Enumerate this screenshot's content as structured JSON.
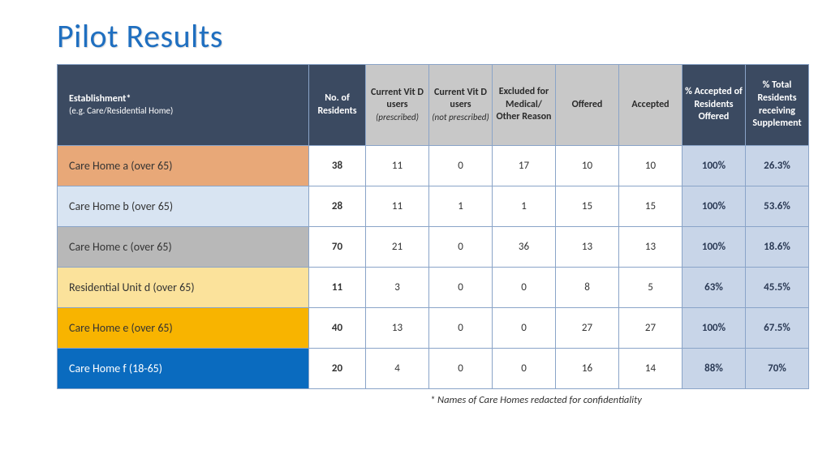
{
  "title": "Pilot Results",
  "footnote": "* Names of Care Homes redacted for confidentiality",
  "columns": [
    {
      "main": "Establishment*",
      "sub": "(e.g. Care/Residential Home)",
      "style": "dark",
      "align": "left"
    },
    {
      "main": "No. of Residents",
      "sub": "",
      "style": "dark"
    },
    {
      "main": "Current Vit D users",
      "sub": "(prescribed)",
      "style": "grey",
      "italicSub": true
    },
    {
      "main": "Current Vit D users",
      "sub": "(not prescribed)",
      "style": "grey",
      "italicSub": true
    },
    {
      "main": "Excluded for Medical/ Other Reason",
      "sub": "",
      "style": "grey"
    },
    {
      "main": "Offered",
      "sub": "",
      "style": "grey"
    },
    {
      "main": "Accepted",
      "sub": "",
      "style": "grey"
    },
    {
      "main": "% Accepted of Residents Offered",
      "sub": "",
      "style": "dark"
    },
    {
      "main": "% Total Residents receiving Supplement",
      "sub": "",
      "style": "dark"
    }
  ],
  "rows": [
    {
      "name": "Care Home a (over 65)",
      "nameBg": "#e8a878",
      "nameColor": "#333333",
      "residents": "38",
      "prescribed": "11",
      "notprescribed": "0",
      "excluded": "17",
      "offered": "10",
      "accepted": "10",
      "pctAccepted": "100%",
      "pctTotal": "26.3%"
    },
    {
      "name": "Care Home b (over 65)",
      "nameBg": "#d8e4f2",
      "nameColor": "#333333",
      "residents": "28",
      "prescribed": "11",
      "notprescribed": "1",
      "excluded": "1",
      "offered": "15",
      "accepted": "15",
      "pctAccepted": "100%",
      "pctTotal": "53.6%"
    },
    {
      "name": "Care Home c (over 65)",
      "nameBg": "#b8b8b8",
      "nameColor": "#333333",
      "residents": "70",
      "prescribed": "21",
      "notprescribed": "0",
      "excluded": "36",
      "offered": "13",
      "accepted": "13",
      "pctAccepted": "100%",
      "pctTotal": "18.6%"
    },
    {
      "name": "Residential Unit d (over 65)",
      "nameBg": "#fbe29b",
      "nameColor": "#333333",
      "residents": "11",
      "prescribed": "3",
      "notprescribed": "0",
      "excluded": "0",
      "offered": "8",
      "accepted": "5",
      "pctAccepted": "63%",
      "pctTotal": "45.5%"
    },
    {
      "name": "Care Home e (over 65)",
      "nameBg": "#f8b400",
      "nameColor": "#333333",
      "residents": "40",
      "prescribed": "13",
      "notprescribed": "0",
      "excluded": "0",
      "offered": "27",
      "accepted": "27",
      "pctAccepted": "100%",
      "pctTotal": "67.5%"
    },
    {
      "name": "Care Home f (18-65)",
      "nameBg": "#0a6bbf",
      "nameColor": "#ffffff",
      "residents": "20",
      "prescribed": "4",
      "notprescribed": "0",
      "excluded": "0",
      "offered": "16",
      "accepted": "14",
      "pctAccepted": "88%",
      "pctTotal": "70%"
    }
  ],
  "colWidths": [
    "col-est",
    "col-num",
    "col-std",
    "col-std",
    "col-std",
    "col-std",
    "col-std",
    "col-std",
    "col-std"
  ]
}
